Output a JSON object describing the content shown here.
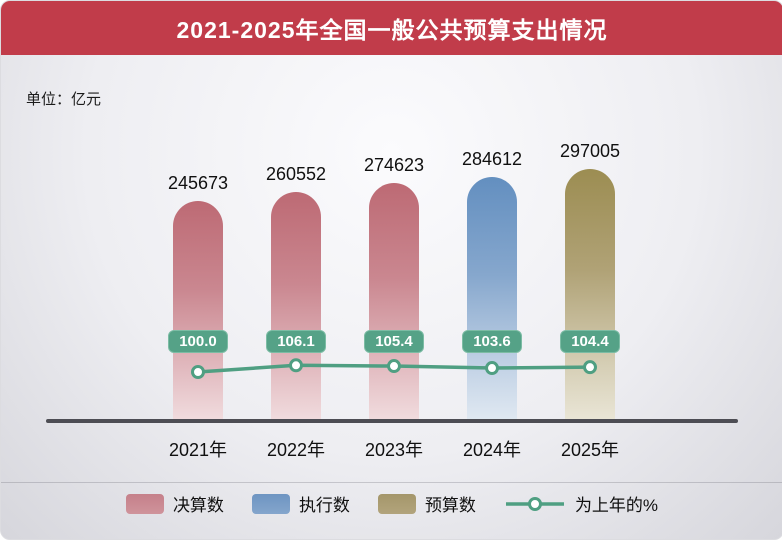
{
  "title": "2021-2025年全国一般公共预算支出情况",
  "unit_label": "单位：亿元",
  "chart_data": {
    "type": "bar",
    "title": "2021-2025年全国一般公共预算支出情况",
    "unit": "亿元",
    "categories": [
      "2021年",
      "2022年",
      "2023年",
      "2024年",
      "2025年"
    ],
    "bar_series": {
      "name": "全国一般公共预算支出",
      "values": [
        245673,
        260552,
        274623,
        284612,
        297005
      ],
      "types": [
        "decision",
        "decision",
        "decision",
        "execution",
        "budget"
      ],
      "type_labels": [
        "决算数",
        "决算数",
        "决算数",
        "执行数",
        "预算数"
      ]
    },
    "line_series": {
      "name": "为上年的%",
      "values": [
        100.0,
        106.1,
        105.4,
        103.6,
        104.4
      ],
      "value_labels": [
        "100.0",
        "106.1",
        "105.4",
        "103.6",
        "104.4"
      ]
    },
    "ylim": [
      0,
      297005
    ],
    "grid": false,
    "legend_position": "bottom"
  },
  "legend": {
    "items": [
      {
        "label": "决算数",
        "type": "decision",
        "color": "#c5808a"
      },
      {
        "label": "执行数",
        "type": "execution",
        "color": "#6e95c2"
      },
      {
        "label": "预算数",
        "type": "budget",
        "color": "#a4966a"
      },
      {
        "label": "为上年的%",
        "type": "line",
        "color": "#4f9f82"
      }
    ]
  },
  "colors": {
    "title_bar": "#c13c4a",
    "badge": "#55a287",
    "line": "#4f9f82",
    "axis": "#4d4d54",
    "bar_decision": "#bd6a74",
    "bar_execution": "#638fc0",
    "bar_budget": "#9c8d52"
  }
}
